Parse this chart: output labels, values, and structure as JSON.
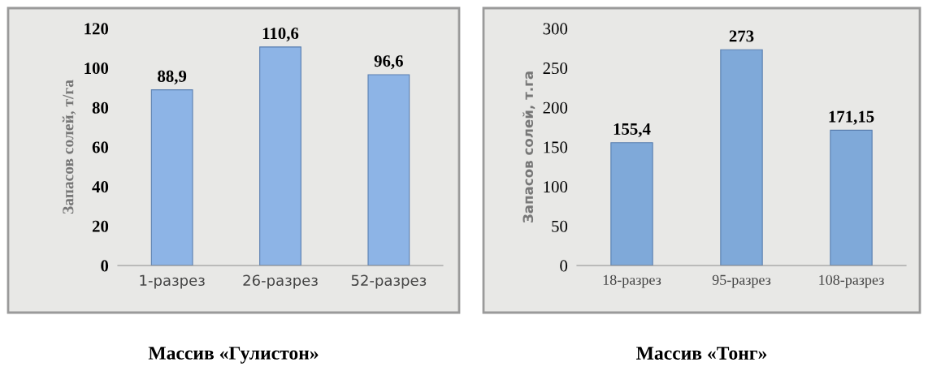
{
  "chart_data": [
    {
      "type": "bar",
      "title": "Массив «Гулистон»",
      "ylabel": "Запасов солей, т/га",
      "categories": [
        "1-разрез",
        "26-разрез",
        "52-разрез"
      ],
      "values": [
        88.9,
        110.6,
        96.6
      ],
      "color": "#8db4e6",
      "value_labels": [
        "88,9",
        "110,6",
        "96,6"
      ],
      "ylim": [
        0,
        120
      ],
      "yticks": [
        0,
        20,
        40,
        60,
        80,
        100,
        120
      ],
      "grid": false
    },
    {
      "type": "bar",
      "title": "Массив «Тонг»",
      "ylabel": "Запасов солей, т.га",
      "categories": [
        "18-разрез",
        "95-разрез",
        "108-разрез"
      ],
      "values": [
        155.4,
        273,
        171.15
      ],
      "color": "#7fa9d9",
      "value_labels": [
        "155,4",
        "273",
        "171,15"
      ],
      "ylim": [
        0,
        300
      ],
      "yticks": [
        0,
        50,
        100,
        150,
        200,
        250,
        300
      ],
      "grid": false
    }
  ]
}
